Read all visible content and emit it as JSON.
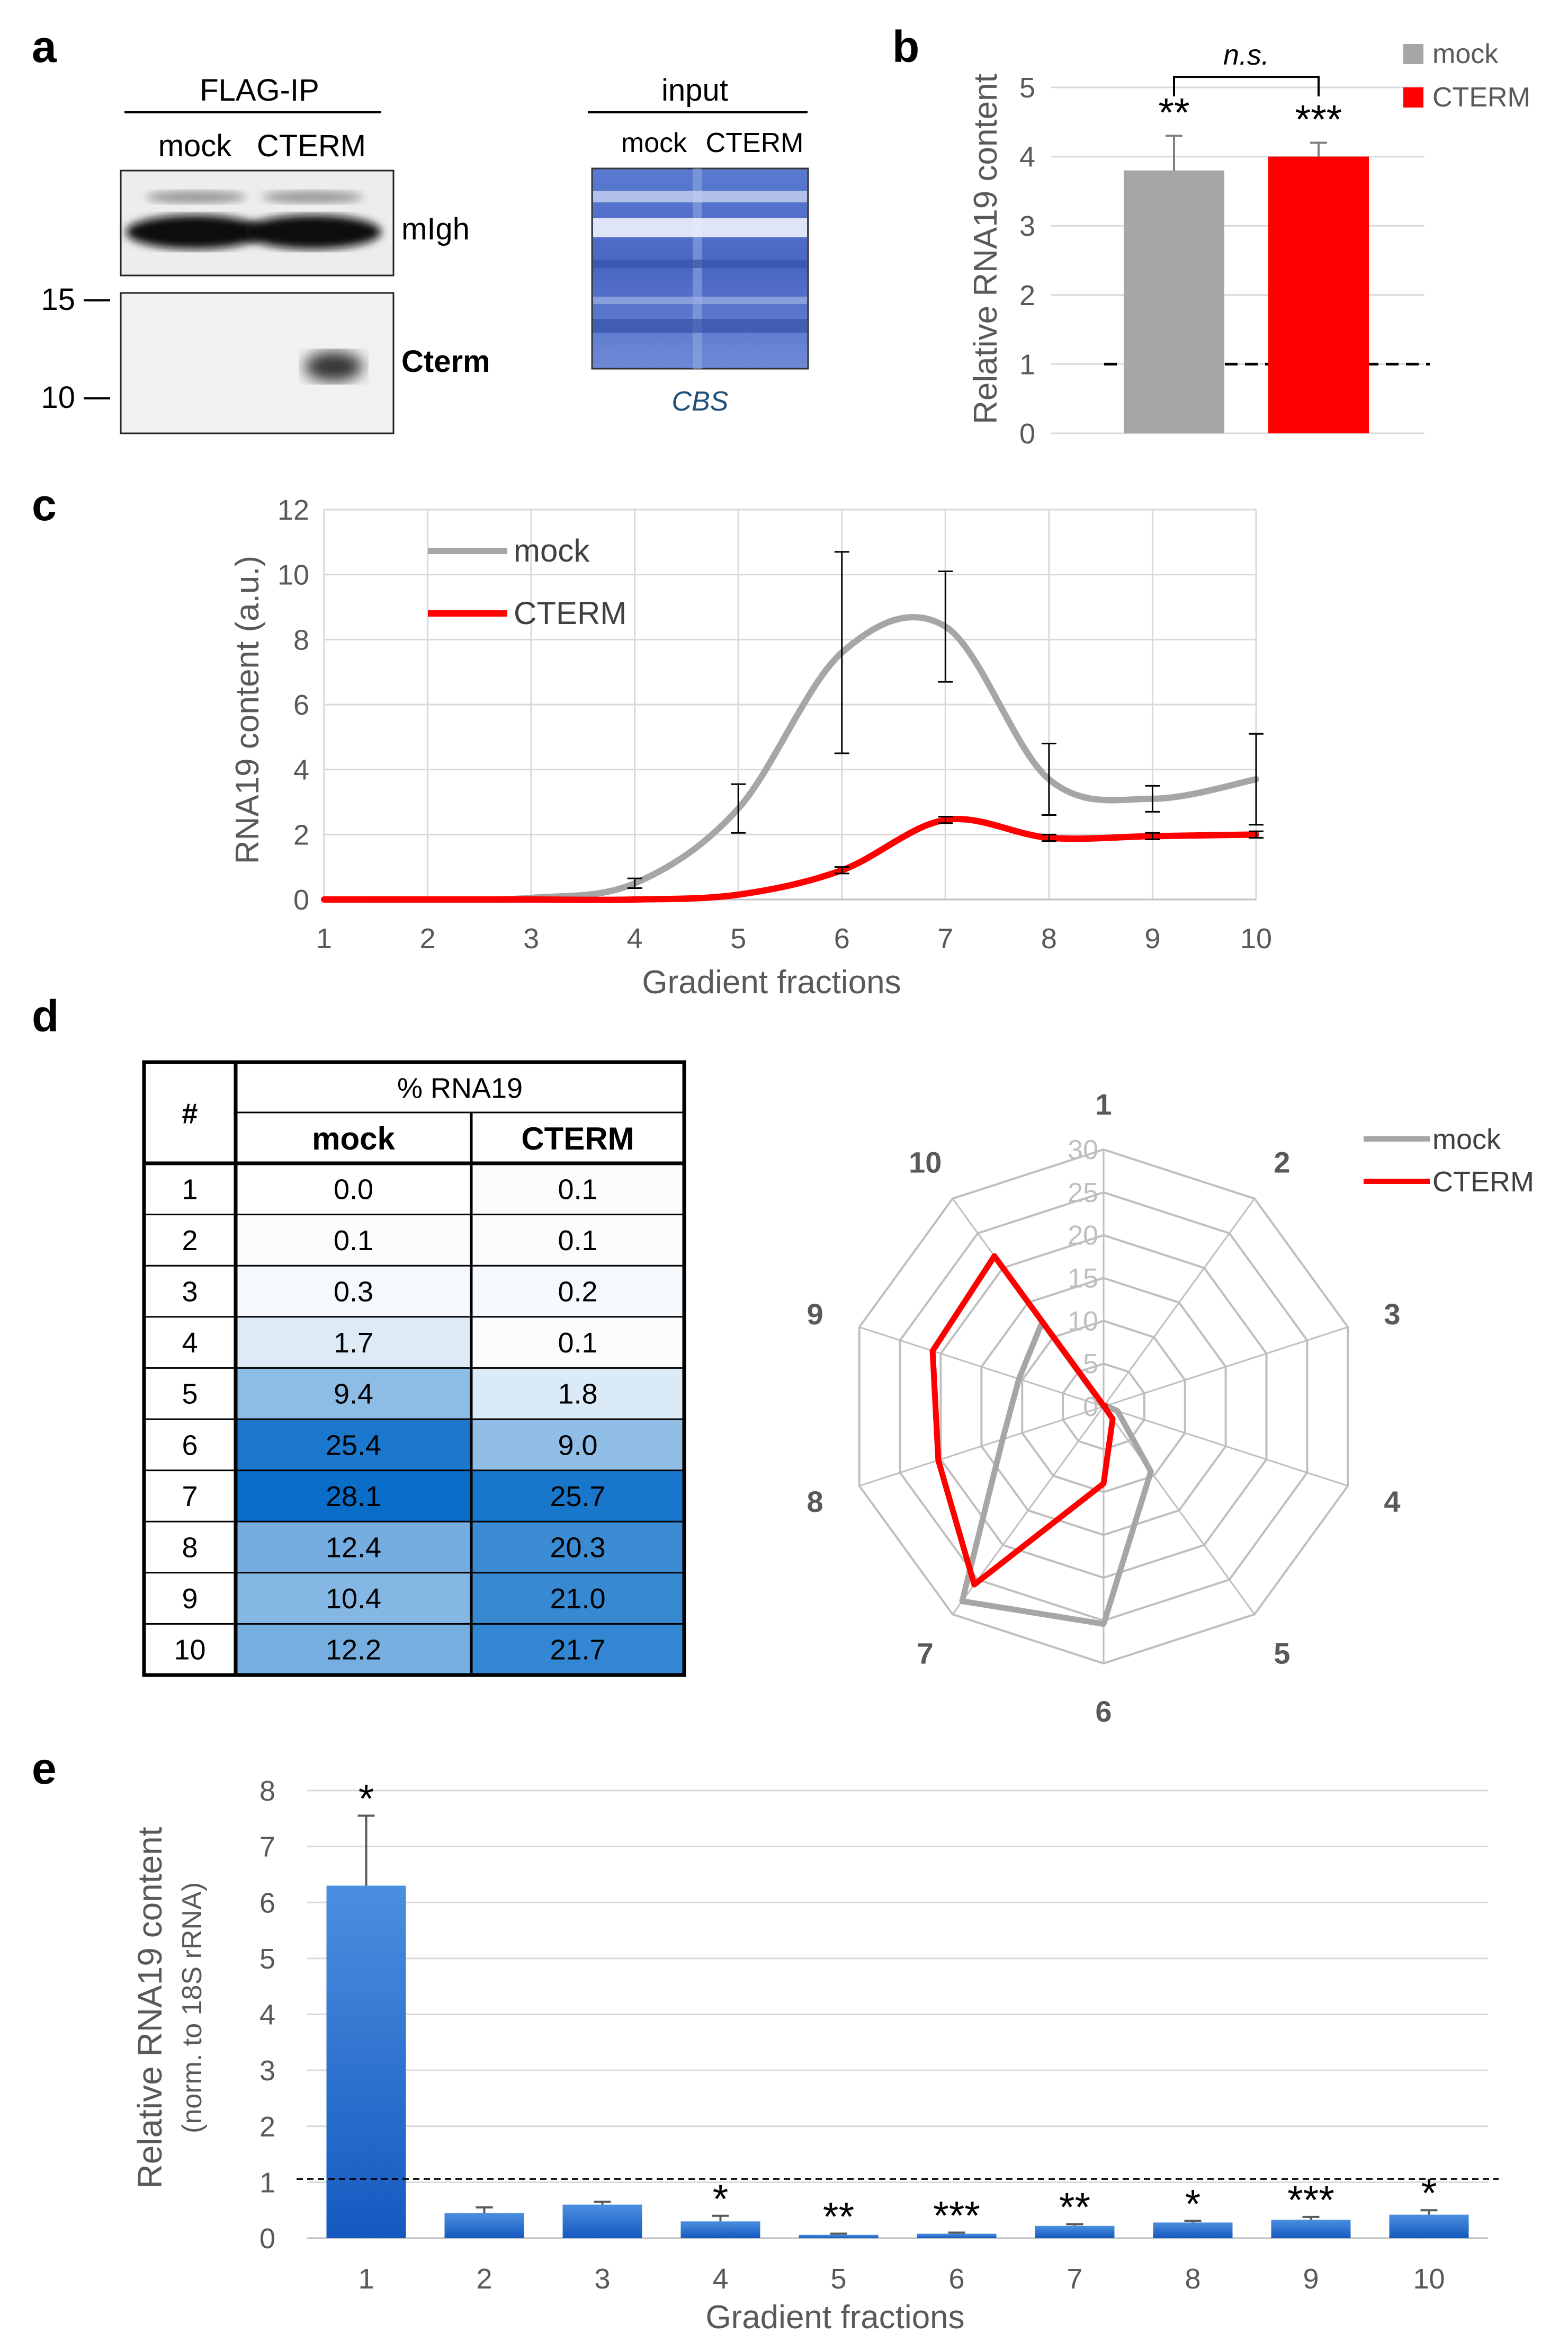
{
  "panels": {
    "a": "a",
    "b": "b",
    "c": "c",
    "d": "d",
    "e": "e"
  },
  "panel_a": {
    "ip_title": "FLAG-IP",
    "ip_lanes": [
      "mock",
      "CTERM"
    ],
    "band_labels": {
      "top": "mIgh",
      "bottom": "Cterm"
    },
    "mw_markers": [
      "15",
      "10"
    ],
    "input_title": "input",
    "input_lanes": [
      "mock",
      "CTERM"
    ],
    "stain_label": "CBS",
    "colors": {
      "stain_blue": "#4a6cc8",
      "caption_blue": "#1f4e79"
    }
  },
  "chart_data": [
    {
      "id": "b",
      "type": "bar",
      "categories": [
        "mock",
        "CTERM"
      ],
      "values": [
        3.8,
        4.0
      ],
      "errors": [
        0.5,
        0.2
      ],
      "significance": [
        "**",
        "***"
      ],
      "comparison_label": "n.s.",
      "reference_line": 1,
      "ylabel": "Relative RNA19 content",
      "ylim": [
        0,
        5
      ],
      "yticks": [
        "0",
        "1",
        "2",
        "3",
        "4",
        "5"
      ],
      "legend": [
        "mock",
        "CTERM"
      ],
      "legend_position": "top-right",
      "colors": [
        "#a6a6a6",
        "#ff0000"
      ]
    },
    {
      "id": "c",
      "type": "line",
      "x": [
        "1",
        "2",
        "3",
        "4",
        "5",
        "6",
        "7",
        "8",
        "9",
        "10"
      ],
      "series": [
        {
          "name": "mock",
          "color": "#a6a6a6",
          "values": [
            0,
            0,
            0.05,
            0.5,
            2.8,
            7.6,
            8.4,
            3.7,
            3.1,
            3.7
          ],
          "errors": [
            0,
            0,
            0,
            0.15,
            0.75,
            3.1,
            1.7,
            1.1,
            0.4,
            1.4
          ]
        },
        {
          "name": "CTERM",
          "color": "#ff0000",
          "values": [
            0,
            0,
            0,
            0,
            0.15,
            0.9,
            2.45,
            1.9,
            1.95,
            2.0
          ],
          "errors": [
            0,
            0,
            0,
            0,
            0,
            0.1,
            0.1,
            0.1,
            0.1,
            0.1
          ]
        }
      ],
      "xlabel": "Gradient fractions",
      "ylabel": "RNA19 content (a.u.)",
      "ylim": [
        0,
        12
      ],
      "yticks": [
        "0",
        "2",
        "4",
        "6",
        "8",
        "10",
        "12"
      ],
      "legend_position": "top-left"
    },
    {
      "id": "d-table",
      "type": "table",
      "header_hash": "#",
      "header_group": "% RNA19",
      "columns": [
        "mock",
        "CTERM"
      ],
      "rows": [
        {
          "n": "1",
          "mock": "0.0",
          "cterm": "0.1"
        },
        {
          "n": "2",
          "mock": "0.1",
          "cterm": "0.1"
        },
        {
          "n": "3",
          "mock": "0.3",
          "cterm": "0.2"
        },
        {
          "n": "4",
          "mock": "1.7",
          "cterm": "0.1"
        },
        {
          "n": "5",
          "mock": "9.4",
          "cterm": "1.8"
        },
        {
          "n": "6",
          "mock": "25.4",
          "cterm": "9.0"
        },
        {
          "n": "7",
          "mock": "28.1",
          "cterm": "25.7"
        },
        {
          "n": "8",
          "mock": "12.4",
          "cterm": "20.3"
        },
        {
          "n": "9",
          "mock": "10.4",
          "cterm": "21.0"
        },
        {
          "n": "10",
          "mock": "12.2",
          "cterm": "21.7"
        }
      ],
      "header_colors": {
        "mock": "#7f7f7f",
        "cterm": "#ff0000"
      }
    },
    {
      "id": "d-radar",
      "type": "radar",
      "axes": [
        "1",
        "2",
        "3",
        "4",
        "5",
        "6",
        "7",
        "8",
        "9",
        "10"
      ],
      "rlim": [
        0,
        30
      ],
      "rticks": [
        "0",
        "5",
        "10",
        "15",
        "20",
        "25",
        "30"
      ],
      "series": [
        {
          "name": "mock",
          "color": "#a6a6a6",
          "values": [
            0.0,
            0.1,
            0.3,
            1.7,
            9.4,
            25.4,
            28.1,
            12.4,
            10.4,
            12.2
          ]
        },
        {
          "name": "CTERM",
          "color": "#ff0000",
          "values": [
            0.1,
            0.1,
            0.2,
            0.1,
            1.8,
            9.0,
            25.7,
            20.3,
            21.0,
            21.7
          ]
        }
      ],
      "legend_position": "top-right"
    },
    {
      "id": "e",
      "type": "bar",
      "categories": [
        "1",
        "2",
        "3",
        "4",
        "5",
        "6",
        "7",
        "8",
        "9",
        "10"
      ],
      "values": [
        6.3,
        0.45,
        0.6,
        0.3,
        0.06,
        0.08,
        0.22,
        0.28,
        0.33,
        0.42
      ],
      "errors": [
        1.25,
        0.1,
        0.05,
        0.1,
        0.02,
        0.02,
        0.03,
        0.03,
        0.05,
        0.08
      ],
      "significance": [
        "*",
        "",
        "",
        "*",
        "**",
        "***",
        "**",
        "*",
        "***",
        "*"
      ],
      "reference_line": 1,
      "xlabel": "Gradient fractions",
      "ylabel": "Relative RNA19 content",
      "ylabel_sub": "(norm. to 18S rRNA)",
      "ylim": [
        0,
        8
      ],
      "yticks": [
        "0",
        "1",
        "2",
        "3",
        "4",
        "5",
        "6",
        "7",
        "8"
      ],
      "color": "#1f6fd0"
    }
  ]
}
